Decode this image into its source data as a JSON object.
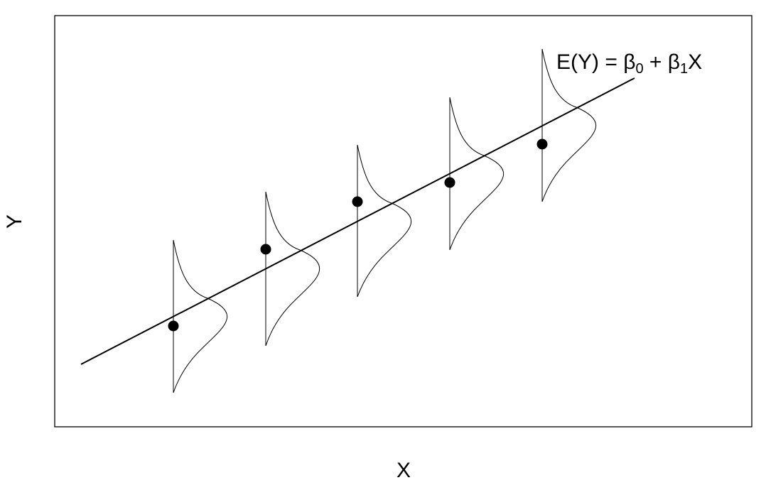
{
  "axes": {
    "x_label": "X",
    "y_label": "Y"
  },
  "equation": {
    "prefix": "E(Y) = β",
    "sub0": "0",
    "mid": " + β",
    "sub1": "1",
    "suffix": "X"
  },
  "chart_data": {
    "type": "scatter",
    "regression_line": {
      "label": "E(Y) = β0 + β1X"
    },
    "x_ticks_shown": false,
    "y_ticks_shown": false,
    "grid": false,
    "curve_count": 5,
    "point_count": 5
  }
}
